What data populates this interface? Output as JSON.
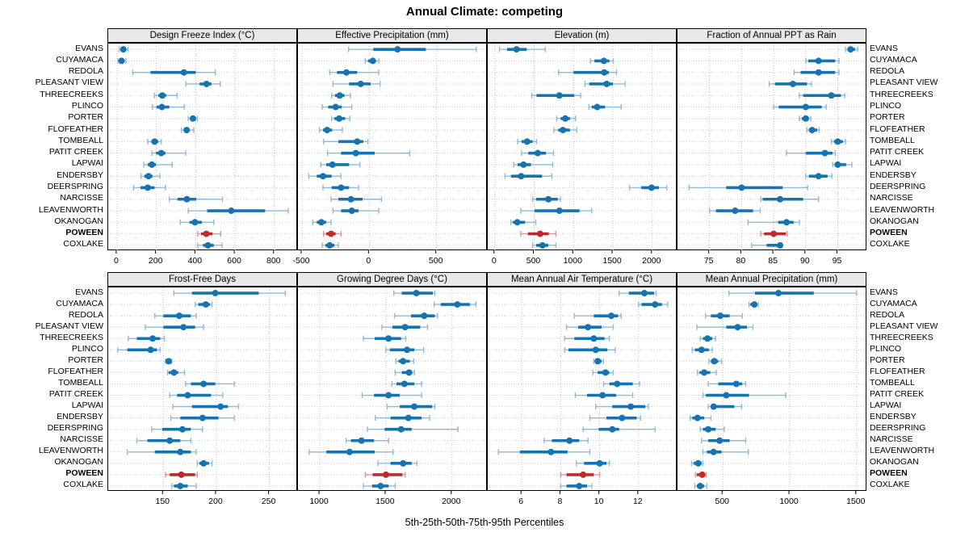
{
  "title": "Annual Climate: competing",
  "footer": "5th-25th-50th-75th-95th Percentiles",
  "colors": {
    "series": "#1773b0",
    "series_light": "#8fb9da",
    "highlight": "#bf2b2d",
    "highlight_light": "#dd9392",
    "strip_bg": "#e8e8e8",
    "grid": "#c8c8c8",
    "row_guide": "#cfcfcf",
    "border": "#000000"
  },
  "chart_data": {
    "type": "dotplot-percentile-trellis",
    "percentiles": [
      "5th",
      "25th",
      "50th",
      "75th",
      "95th"
    ],
    "highlight_station": "POWEEN",
    "stations": [
      "EVANS",
      "CUYAMACA",
      "REDOLA",
      "PLEASANT VIEW",
      "THREECREEKS",
      "PLINCO",
      "PORTER",
      "FLOFEATHER",
      "TOMBEALL",
      "PATIT CREEK",
      "LAPWAI",
      "ENDERSBY",
      "DEERSPRING",
      "NARCISSE",
      "LEAVENWORTH",
      "OKANOGAN",
      "POWEEN",
      "COXLAKE"
    ],
    "panels": [
      {
        "label": "Design Freeze Index (°C)",
        "ticks": [
          0,
          200,
          400,
          600,
          800
        ],
        "domain": [
          -45,
          920
        ],
        "values": [
          [
            11,
            20,
            32,
            45,
            56
          ],
          [
            4,
            12,
            23,
            33,
            45
          ],
          [
            80,
            170,
            340,
            400,
            500
          ],
          [
            350,
            420,
            455,
            480,
            525
          ],
          [
            190,
            210,
            230,
            250,
            305
          ],
          [
            180,
            200,
            228,
            266,
            342
          ],
          [
            362,
            373,
            386,
            399,
            409
          ],
          [
            328,
            342,
            354,
            369,
            390
          ],
          [
            156,
            174,
            191,
            209,
            225
          ],
          [
            177,
            198,
            225,
            246,
            349
          ],
          [
            136,
            156,
            177,
            198,
            280
          ],
          [
            122,
            139,
            160,
            180,
            218
          ],
          [
            84,
            119,
            156,
            191,
            246
          ],
          [
            266,
            307,
            355,
            403,
            536
          ],
          [
            362,
            458,
            581,
            753,
            870
          ],
          [
            321,
            369,
            396,
            431,
            492
          ],
          [
            410,
            427,
            454,
            486,
            527
          ],
          [
            410,
            437,
            462,
            492,
            534
          ]
        ]
      },
      {
        "label": "Effective Precipitation (mm)",
        "ticks": [
          -500,
          0,
          500
        ],
        "domain": [
          -530,
          880
        ],
        "values": [
          [
            -154,
            30,
            210,
            420,
            795
          ],
          [
            -30,
            -10,
            26,
            50,
            70
          ],
          [
            -294,
            -240,
            -170,
            -90,
            70
          ],
          [
            -270,
            -150,
            -64,
            10,
            80
          ],
          [
            -280,
            -255,
            -220,
            -185,
            -140
          ],
          [
            -350,
            -305,
            -250,
            -205,
            -130
          ],
          [
            -280,
            -260,
            -224,
            -180,
            -145
          ],
          [
            -370,
            -344,
            -314,
            -276,
            -200
          ],
          [
            -340,
            -230,
            -90,
            -45,
            -10
          ],
          [
            -310,
            -210,
            -100,
            40,
            300
          ],
          [
            -360,
            -320,
            -274,
            -150,
            -70
          ],
          [
            -450,
            -390,
            -344,
            -280,
            -210
          ],
          [
            -344,
            -280,
            -210,
            -150,
            -80
          ],
          [
            -284,
            -230,
            -136,
            -50,
            90
          ],
          [
            -270,
            -210,
            -130,
            -80,
            70
          ],
          [
            -420,
            -390,
            -356,
            -320,
            -284
          ],
          [
            -340,
            -320,
            -284,
            -250,
            -210
          ],
          [
            -350,
            -326,
            -294,
            -260,
            -230
          ]
        ]
      },
      {
        "label": "Elevation (m)",
        "ticks": [
          0,
          500,
          1000,
          1500,
          2000
        ],
        "domain": [
          -90,
          2320
        ],
        "values": [
          [
            60,
            155,
            275,
            405,
            640
          ],
          [
            1215,
            1265,
            1385,
            1455,
            1505
          ],
          [
            810,
            1000,
            1390,
            1450,
            1545
          ],
          [
            1145,
            1200,
            1420,
            1500,
            1655
          ],
          [
            470,
            530,
            820,
            1010,
            1090
          ],
          [
            1195,
            1230,
            1300,
            1400,
            1605
          ],
          [
            785,
            835,
            895,
            955,
            1025
          ],
          [
            750,
            805,
            865,
            955,
            1040
          ],
          [
            290,
            340,
            410,
            480,
            530
          ],
          [
            340,
            425,
            545,
            650,
            745
          ],
          [
            240,
            290,
            365,
            460,
            735
          ],
          [
            130,
            205,
            335,
            600,
            725
          ],
          [
            1710,
            1860,
            1990,
            2085,
            2185
          ],
          [
            480,
            525,
            680,
            800,
            835
          ],
          [
            330,
            505,
            820,
            1075,
            1230
          ],
          [
            205,
            230,
            285,
            385,
            520
          ],
          [
            330,
            420,
            575,
            685,
            775
          ],
          [
            480,
            525,
            605,
            680,
            775
          ]
        ]
      },
      {
        "label": "Fraction of Annual PPT as Rain",
        "ticks": [
          75,
          80,
          85,
          90,
          95
        ],
        "domain": [
          70,
          99.6
        ],
        "values": [
          [
            96.2,
            96.5,
            97,
            97.7,
            98.1
          ],
          [
            90,
            90.4,
            92,
            94.6,
            95.2
          ],
          [
            88.2,
            89.2,
            92,
            94.6,
            95.2
          ],
          [
            84.3,
            85.2,
            88,
            90.2,
            90.9
          ],
          [
            89,
            89.6,
            94,
            95.5,
            96.1
          ],
          [
            85,
            85.8,
            90,
            92.5,
            93.2
          ],
          [
            89,
            89.4,
            90,
            90.5,
            90.8
          ],
          [
            90.2,
            90.5,
            91,
            91.8,
            92.1
          ],
          [
            94,
            94.4,
            95,
            95.8,
            96.2
          ],
          [
            87,
            90,
            93,
            94.2,
            94.6
          ],
          [
            94.2,
            94.5,
            95,
            96.3,
            97.2
          ],
          [
            90,
            90.5,
            92,
            93.4,
            94.1
          ],
          [
            71.8,
            77.6,
            80,
            86.4,
            90.3
          ],
          [
            83,
            83.3,
            86,
            89.6,
            92
          ],
          [
            75,
            76,
            79,
            81.8,
            82.9
          ],
          [
            81,
            85.7,
            87,
            88.1,
            89
          ],
          [
            83,
            83.5,
            85,
            86.9,
            87.1
          ],
          [
            81.6,
            83.9,
            86,
            86.1,
            86.3
          ]
        ]
      },
      {
        "label": "Frost-Free Days",
        "ticks": [
          150,
          200,
          250
        ],
        "domain": [
          98,
          277
        ],
        "values": [
          [
            160,
            177,
            199,
            240,
            265
          ],
          [
            180,
            183,
            190,
            194,
            196
          ],
          [
            142,
            150,
            165,
            176,
            181
          ],
          [
            133,
            150,
            169,
            180,
            188
          ],
          [
            117,
            125,
            140,
            147,
            151
          ],
          [
            107,
            116,
            138,
            144,
            147
          ],
          [
            152,
            153,
            155,
            157,
            158
          ],
          [
            154,
            155,
            160,
            164,
            170
          ],
          [
            171,
            176,
            188,
            199,
            217
          ],
          [
            156,
            163,
            173,
            195,
            206
          ],
          [
            159,
            177,
            204,
            211,
            221
          ],
          [
            157,
            166,
            187,
            202,
            217
          ],
          [
            139,
            149,
            168,
            176,
            187
          ],
          [
            125,
            135,
            156,
            166,
            176
          ],
          [
            116,
            142,
            166,
            176,
            181
          ],
          [
            182,
            184,
            188,
            193,
            196
          ],
          [
            152,
            156,
            167,
            180,
            182
          ],
          [
            158,
            160,
            166,
            173,
            181
          ]
        ]
      },
      {
        "label": "Growing Degree Days (°C)",
        "ticks": [
          1000,
          1500,
          2000
        ],
        "domain": [
          835,
          2270
        ],
        "values": [
          [
            1560,
            1620,
            1730,
            1855,
            1870
          ],
          [
            1865,
            1915,
            2040,
            2135,
            2180
          ],
          [
            1565,
            1690,
            1790,
            1870,
            1890
          ],
          [
            1470,
            1550,
            1645,
            1760,
            1815
          ],
          [
            1330,
            1415,
            1520,
            1615,
            1650
          ],
          [
            1500,
            1530,
            1660,
            1715,
            1785
          ],
          [
            1575,
            1595,
            1630,
            1680,
            1710
          ],
          [
            1570,
            1620,
            1675,
            1700,
            1715
          ],
          [
            1545,
            1580,
            1640,
            1715,
            1770
          ],
          [
            1320,
            1410,
            1520,
            1605,
            1770
          ],
          [
            1510,
            1605,
            1715,
            1850,
            1870
          ],
          [
            1420,
            1535,
            1670,
            1770,
            1830
          ],
          [
            1360,
            1490,
            1615,
            1695,
            2045
          ],
          [
            1200,
            1235,
            1315,
            1410,
            1520
          ],
          [
            920,
            1050,
            1225,
            1415,
            1555
          ],
          [
            1440,
            1535,
            1630,
            1695,
            1735
          ],
          [
            1345,
            1400,
            1500,
            1625,
            1645
          ],
          [
            1330,
            1395,
            1460,
            1520,
            1570
          ]
        ]
      },
      {
        "label": "Mean Annual Air Temperature (°C)",
        "ticks": [
          6,
          8,
          10,
          12
        ],
        "domain": [
          4.25,
          14
        ],
        "values": [
          [
            11.0,
            11.5,
            12.3,
            12.8,
            12.9
          ],
          [
            12.0,
            12.15,
            12.85,
            13.2,
            13.5
          ],
          [
            8.7,
            9.7,
            10.6,
            10.95,
            11.1
          ],
          [
            8.3,
            8.9,
            9.4,
            10.1,
            10.7
          ],
          [
            8.2,
            8.7,
            9.7,
            10.25,
            10.5
          ],
          [
            8.2,
            8.4,
            9.8,
            10.4,
            10.8
          ],
          [
            9.7,
            9.75,
            9.9,
            10.1,
            10.2
          ],
          [
            9.65,
            9.9,
            10.3,
            10.5,
            10.7
          ],
          [
            10.2,
            10.5,
            10.9,
            11.7,
            12.05
          ],
          [
            8.75,
            9.35,
            10.15,
            10.85,
            11.7
          ],
          [
            9.8,
            10.65,
            11.6,
            12.35,
            12.5
          ],
          [
            9.5,
            10.35,
            11.15,
            11.9,
            12.1
          ],
          [
            9.15,
            9.95,
            10.65,
            11.0,
            12.85
          ],
          [
            7.15,
            7.55,
            8.45,
            8.95,
            9.4
          ],
          [
            4.8,
            5.9,
            7.5,
            8.35,
            9.5
          ],
          [
            8.8,
            9.2,
            10.0,
            10.35,
            10.5
          ],
          [
            8.0,
            8.3,
            9.15,
            9.7,
            10.0
          ],
          [
            8.0,
            8.3,
            8.95,
            9.35,
            9.6
          ]
        ]
      },
      {
        "label": "Mean Annual Precipitation (mm)",
        "ticks": [
          500,
          1000,
          1500
        ],
        "domain": [
          160,
          1580
        ],
        "values": [
          [
            545,
            740,
            915,
            1180,
            1500
          ],
          [
            695,
            705,
            735,
            755,
            765
          ],
          [
            370,
            410,
            480,
            550,
            645
          ],
          [
            305,
            525,
            610,
            680,
            725
          ],
          [
            330,
            350,
            385,
            420,
            445
          ],
          [
            270,
            290,
            340,
            395,
            420
          ],
          [
            395,
            410,
            435,
            465,
            490
          ],
          [
            310,
            325,
            360,
            405,
            450
          ],
          [
            390,
            465,
            600,
            645,
            670
          ],
          [
            350,
            372,
            525,
            695,
            970
          ],
          [
            390,
            410,
            430,
            585,
            640
          ],
          [
            255,
            270,
            310,
            360,
            410
          ],
          [
            330,
            350,
            390,
            445,
            510
          ],
          [
            340,
            390,
            475,
            550,
            670
          ],
          [
            350,
            380,
            430,
            490,
            690
          ],
          [
            265,
            280,
            315,
            340,
            350
          ],
          [
            295,
            305,
            345,
            365,
            375
          ],
          [
            290,
            305,
            330,
            360,
            380
          ]
        ]
      }
    ]
  }
}
